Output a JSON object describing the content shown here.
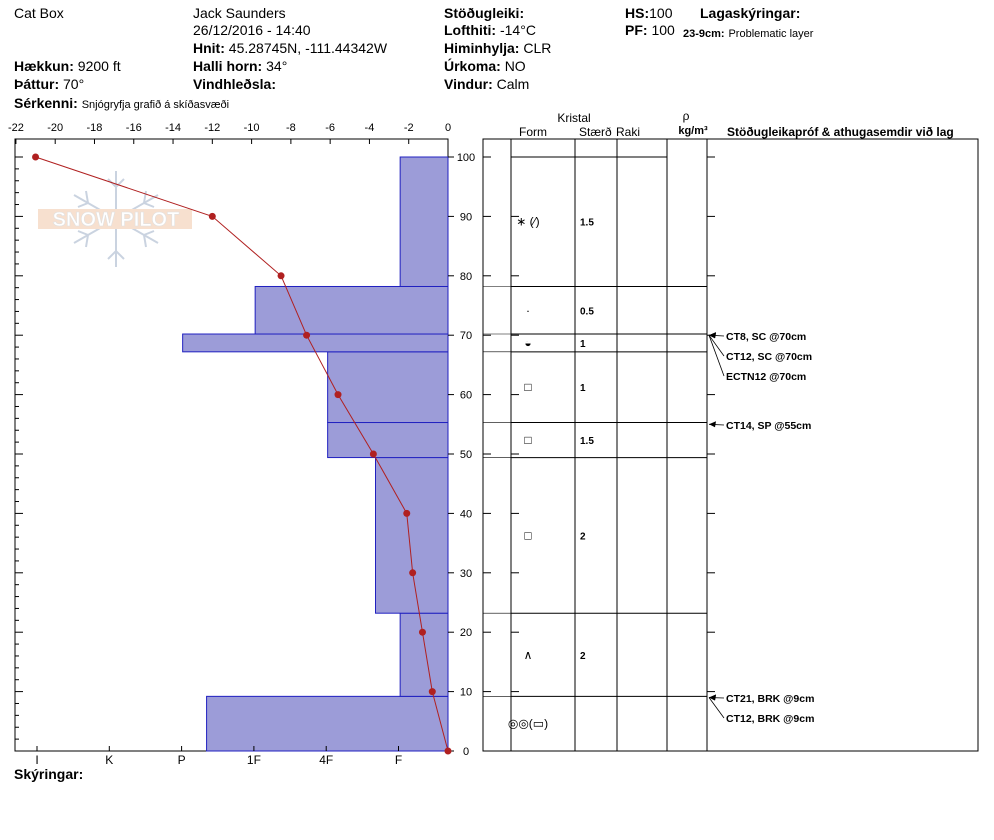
{
  "header": {
    "location": "Cat Box",
    "observer": "Jack Saunders",
    "datetime": "26/12/2016 - 14:40",
    "coords_label": "Hnit:",
    "coords": "45.28745N, -111.44342W",
    "elevation_label": "Hækkun:",
    "elevation": "9200 ft",
    "aspect_label": "Þáttur:",
    "aspect": "70°",
    "slope_label": "Halli horn:",
    "slope": "34°",
    "wind_loading_label": "Vindhleðsla:",
    "remarks_label": "Sérkenni:",
    "remarks": "Snjógryfja grafið á skíðasvæði",
    "stability_label": "Stöðugleiki:",
    "air_temp_label": "Lofthiti:",
    "air_temp": "-14°C",
    "sky_label": "Himinhylja:",
    "sky": "CLR",
    "precip_label": "Úrkoma:",
    "precip": "NO",
    "wind_label": "Vindur:",
    "wind": "Calm",
    "hs_label": "HS:",
    "hs": "100",
    "pf_label": "PF:",
    "pf": "100",
    "legend_label": "Lagaskýringar:",
    "layer_range": "23-9cm:",
    "layer_note": "Problematic layer",
    "footer_label": "Skýringar:"
  },
  "table_headers": {
    "kristal": "Kristal",
    "form": "Form",
    "size": "Stærð",
    "moisture": "Raki",
    "rho": "ρ",
    "density_unit": "kg/m³",
    "tests": "Stöðugleikapróf & athugasemdir við lag"
  },
  "logo_text": "SNOW PILOT",
  "colors": {
    "hardness_fill": "#9c9cd8",
    "hardness_stroke": "#2020c0",
    "temp_line": "#b02020"
  },
  "chart_data": {
    "type": "bar",
    "x_temp_ticks": [
      "-22",
      "-20",
      "-18",
      "-16",
      "-14",
      "-12",
      "-10",
      "-8",
      "-6",
      "-4",
      "-2",
      "0"
    ],
    "x_temp_range": [
      -22,
      0
    ],
    "y_ticks": [
      "0",
      "10",
      "20",
      "30",
      "40",
      "50",
      "60",
      "70",
      "80",
      "90",
      "100"
    ],
    "y_range": [
      0,
      100
    ],
    "hardness_scale": [
      "I",
      "K",
      "P",
      "1F",
      "4F",
      "F"
    ],
    "hardness_layers": [
      {
        "bottom": 0,
        "top": 9.2,
        "hardness": "P",
        "hardness_index": 3.33
      },
      {
        "bottom": 9.2,
        "top": 23.2,
        "hardness": "F",
        "hardness_index": 0.66
      },
      {
        "bottom": 23.2,
        "top": 49.4,
        "hardness": "F+",
        "hardness_index": 1.0
      },
      {
        "bottom": 49.4,
        "top": 55.3,
        "hardness": "4F",
        "hardness_index": 1.66
      },
      {
        "bottom": 55.3,
        "top": 67.2,
        "hardness": "4F",
        "hardness_index": 1.66
      },
      {
        "bottom": 67.2,
        "top": 70.2,
        "hardness": "P",
        "hardness_index": 3.66
      },
      {
        "bottom": 70.2,
        "top": 78.2,
        "hardness": "1F",
        "hardness_index": 2.66
      },
      {
        "bottom": 78.2,
        "top": 100,
        "hardness": "F",
        "hardness_index": 0.66
      }
    ],
    "temperature_profile": [
      {
        "depth": 100,
        "temp": -21
      },
      {
        "depth": 90,
        "temp": -12
      },
      {
        "depth": 80,
        "temp": -8.5
      },
      {
        "depth": 70,
        "temp": -7.2
      },
      {
        "depth": 60,
        "temp": -5.6
      },
      {
        "depth": 50,
        "temp": -3.8
      },
      {
        "depth": 40,
        "temp": -2.1
      },
      {
        "depth": 30,
        "temp": -1.8
      },
      {
        "depth": 20,
        "temp": -1.3
      },
      {
        "depth": 10,
        "temp": -0.8
      },
      {
        "depth": 0,
        "temp": 0
      }
    ]
  },
  "layers": [
    {
      "bottom": 78.2,
      "top": 100,
      "form": "∗ (⁄)",
      "size": "1.5"
    },
    {
      "bottom": 70.2,
      "top": 78.2,
      "form": "·",
      "size": "0.5"
    },
    {
      "bottom": 67.2,
      "top": 70.2,
      "form": "◒",
      "size": "1"
    },
    {
      "bottom": 55.3,
      "top": 67.2,
      "form": "□",
      "size": "1"
    },
    {
      "bottom": 49.4,
      "top": 55.3,
      "form": "□",
      "size": "1.5"
    },
    {
      "bottom": 23.2,
      "top": 49.4,
      "form": "□",
      "size": "2"
    },
    {
      "bottom": 9.2,
      "top": 23.2,
      "form": "∧",
      "size": "2"
    },
    {
      "bottom": 0,
      "top": 9.2,
      "form": "◎◎(▭)",
      "size": ""
    }
  ],
  "tests": [
    {
      "depth": 70,
      "label": "CT8, SC @70cm"
    },
    {
      "depth": 68,
      "label": "CT12, SC @70cm"
    },
    {
      "depth": 66.6,
      "label": "ECTN12 @70cm"
    },
    {
      "depth": 55,
      "label": "CT14, SP @55cm"
    },
    {
      "depth": 9,
      "label": "CT21, BRK @9cm"
    },
    {
      "depth": 7.6,
      "label": "CT12, BRK @9cm"
    }
  ]
}
